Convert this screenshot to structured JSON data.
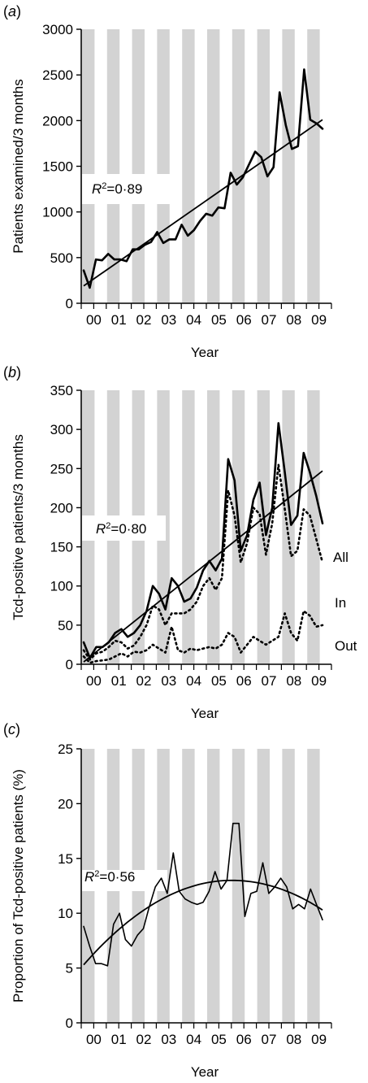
{
  "chart_data": [
    {
      "type": "line",
      "panel_label": "(a)",
      "xlabel": "Year",
      "ylabel": "Patients examined/3 months",
      "ylim": [
        0,
        3000
      ],
      "yticks": [
        0,
        500,
        1000,
        1500,
        2000,
        2500,
        3000
      ],
      "year_labels": [
        "00",
        "01",
        "02",
        "03",
        "04",
        "05",
        "06",
        "07",
        "08",
        "09"
      ],
      "shaded_bands": "alternating half-years",
      "r2": {
        "prefix": "R",
        "sup": "2",
        "value": "=0·89"
      },
      "series": [
        {
          "name": "",
          "style": "solid",
          "trend": "linear",
          "values": [
            360,
            170,
            480,
            470,
            540,
            480,
            480,
            460,
            590,
            590,
            640,
            670,
            780,
            660,
            700,
            700,
            860,
            740,
            800,
            900,
            980,
            960,
            1050,
            1040,
            1430,
            1300,
            1380,
            1520,
            1660,
            1600,
            1390,
            1490,
            2310,
            1950,
            1690,
            1720,
            2560,
            2010,
            1970,
            1910
          ],
          "trend_values": [
            190,
            2010
          ]
        }
      ]
    },
    {
      "type": "line",
      "panel_label": "(b)",
      "xlabel": "Year",
      "ylabel": "Tcd-positive patients/3 months",
      "ylim": [
        0,
        350
      ],
      "yticks": [
        0,
        50,
        100,
        150,
        200,
        250,
        300,
        350
      ],
      "year_labels": [
        "00",
        "01",
        "02",
        "03",
        "04",
        "05",
        "06",
        "07",
        "08",
        "09"
      ],
      "shaded_bands": "alternating half-years",
      "r2": {
        "prefix": "R",
        "sup": "2",
        "value": "=0·80"
      },
      "series": [
        {
          "name": "All",
          "style": "solid",
          "trend": "linear",
          "values": [
            28,
            8,
            22,
            22,
            28,
            40,
            45,
            35,
            40,
            50,
            68,
            100,
            90,
            70,
            110,
            100,
            80,
            84,
            98,
            120,
            132,
            120,
            135,
            262,
            235,
            145,
            165,
            210,
            232,
            165,
            200,
            308,
            245,
            178,
            190,
            270,
            245,
            215,
            180
          ],
          "trend_values": [
            3,
            247
          ]
        },
        {
          "name": "In",
          "style": "dotted",
          "values": [
            18,
            6,
            14,
            16,
            22,
            30,
            28,
            20,
            24,
            35,
            50,
            75,
            70,
            50,
            65,
            65,
            65,
            70,
            80,
            100,
            110,
            95,
            110,
            222,
            190,
            130,
            155,
            200,
            192,
            140,
            180,
            255,
            198,
            138,
            145,
            198,
            190,
            160,
            130
          ]
        },
        {
          "name": "Out",
          "style": "dotted",
          "values": [
            10,
            2,
            4,
            5,
            6,
            10,
            14,
            10,
            16,
            15,
            18,
            25,
            20,
            15,
            48,
            18,
            15,
            20,
            18,
            20,
            22,
            20,
            25,
            40,
            35,
            15,
            25,
            35,
            30,
            25,
            30,
            35,
            65,
            40,
            30,
            68,
            62,
            48,
            50
          ]
        }
      ]
    },
    {
      "type": "line",
      "panel_label": "(c)",
      "xlabel": "Year",
      "ylabel": "Proportion of Tcd-positive patients (%)",
      "ylim": [
        0,
        25
      ],
      "yticks": [
        0,
        5,
        10,
        15,
        20,
        25
      ],
      "year_labels": [
        "00",
        "01",
        "02",
        "03",
        "04",
        "05",
        "06",
        "07",
        "08",
        "09"
      ],
      "shaded_bands": "alternating half-years",
      "r2": {
        "prefix": "R",
        "sup": "2",
        "value": "=0·56"
      },
      "series": [
        {
          "name": "",
          "style": "solid",
          "trend": "quadratic",
          "values": [
            8.8,
            7.0,
            5.4,
            5.4,
            5.2,
            9.0,
            10.0,
            7.6,
            7.0,
            8.0,
            8.6,
            10.6,
            12.4,
            13.2,
            11.8,
            15.5,
            12.0,
            11.3,
            11.0,
            10.8,
            11.0,
            12.0,
            13.8,
            12.2,
            13.0,
            18.2,
            18.2,
            9.7,
            11.8,
            12.0,
            14.6,
            11.8,
            12.4,
            13.2,
            12.4,
            10.4,
            10.8,
            10.4,
            12.2,
            10.8,
            9.4
          ],
          "trend_values": [
            5.3,
            13.0,
            10.3
          ]
        }
      ]
    }
  ]
}
